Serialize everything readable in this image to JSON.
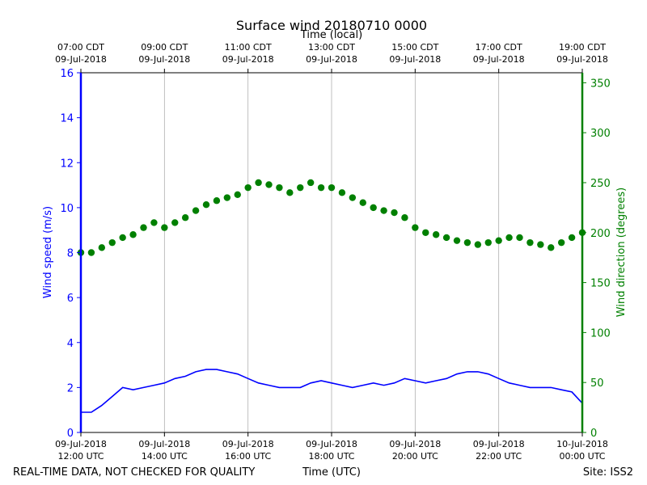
{
  "chart_data": {
    "type": "scatter",
    "title": "Surface wind 20180710 0000",
    "top_axis_label": "Time (local)",
    "xlabel": "Time (UTC)",
    "ylabel_left": "Wind speed (m/s)",
    "ylabel_right": "Wind direction (degrees)",
    "left_ylim": [
      0,
      16
    ],
    "right_ylim": [
      0,
      360
    ],
    "left_ticks": [
      "0",
      "2",
      "4",
      "6",
      "8",
      "10",
      "12",
      "14",
      "16"
    ],
    "right_ticks": [
      "0",
      "50",
      "100",
      "150",
      "200",
      "250",
      "300",
      "350"
    ],
    "x_range_hours_utc": [
      12,
      24
    ],
    "bottom_ticks": [
      {
        "hour": 12,
        "line1": "09-Jul-2018",
        "line2": "12:00 UTC"
      },
      {
        "hour": 14,
        "line1": "09-Jul-2018",
        "line2": "14:00 UTC"
      },
      {
        "hour": 16,
        "line1": "09-Jul-2018",
        "line2": "16:00 UTC"
      },
      {
        "hour": 18,
        "line1": "09-Jul-2018",
        "line2": "18:00 UTC"
      },
      {
        "hour": 20,
        "line1": "09-Jul-2018",
        "line2": "20:00 UTC"
      },
      {
        "hour": 22,
        "line1": "09-Jul-2018",
        "line2": "22:00 UTC"
      },
      {
        "hour": 24,
        "line1": "10-Jul-2018",
        "line2": "00:00 UTC"
      }
    ],
    "top_ticks": [
      {
        "hour": 12,
        "line1": "07:00 CDT",
        "line2": "09-Jul-2018"
      },
      {
        "hour": 14,
        "line1": "09:00 CDT",
        "line2": "09-Jul-2018"
      },
      {
        "hour": 16,
        "line1": "11:00 CDT",
        "line2": "09-Jul-2018"
      },
      {
        "hour": 18,
        "line1": "13:00 CDT",
        "line2": "09-Jul-2018"
      },
      {
        "hour": 20,
        "line1": "15:00 CDT",
        "line2": "09-Jul-2018"
      },
      {
        "hour": 22,
        "line1": "17:00 CDT",
        "line2": "09-Jul-2018"
      },
      {
        "hour": 24,
        "line1": "19:00 CDT",
        "line2": "09-Jul-2018"
      }
    ],
    "series": [
      {
        "name": "Wind speed",
        "axis": "left",
        "style": "line",
        "color": "#0000ff",
        "x": [
          12.0,
          12.25,
          12.5,
          12.75,
          13.0,
          13.25,
          13.5,
          13.75,
          14.0,
          14.25,
          14.5,
          14.75,
          15.0,
          15.25,
          15.5,
          15.75,
          16.0,
          16.25,
          16.5,
          16.75,
          17.0,
          17.25,
          17.5,
          17.75,
          18.0,
          18.25,
          18.5,
          18.75,
          19.0,
          19.25,
          19.5,
          19.75,
          20.0,
          20.25,
          20.5,
          20.75,
          21.0,
          21.25,
          21.5,
          21.75,
          22.0,
          22.25,
          22.5,
          22.75,
          23.0,
          23.25,
          23.5,
          23.75,
          24.0
        ],
        "values": [
          0.9,
          0.9,
          1.2,
          1.6,
          2.0,
          1.9,
          2.0,
          2.1,
          2.2,
          2.4,
          2.5,
          2.7,
          2.8,
          2.8,
          2.7,
          2.6,
          2.4,
          2.2,
          2.1,
          2.0,
          2.0,
          2.0,
          2.2,
          2.3,
          2.2,
          2.1,
          2.0,
          2.1,
          2.2,
          2.1,
          2.2,
          2.4,
          2.3,
          2.2,
          2.3,
          2.4,
          2.6,
          2.7,
          2.7,
          2.6,
          2.4,
          2.2,
          2.1,
          2.0,
          2.0,
          2.0,
          1.9,
          1.8,
          1.3
        ]
      },
      {
        "name": "Wind direction",
        "axis": "right",
        "style": "markers",
        "color": "#008000",
        "x": [
          12.0,
          12.25,
          12.5,
          12.75,
          13.0,
          13.25,
          13.5,
          13.75,
          14.0,
          14.25,
          14.5,
          14.75,
          15.0,
          15.25,
          15.5,
          15.75,
          16.0,
          16.25,
          16.5,
          16.75,
          17.0,
          17.25,
          17.5,
          17.75,
          18.0,
          18.25,
          18.5,
          18.75,
          19.0,
          19.25,
          19.5,
          19.75,
          20.0,
          20.25,
          20.5,
          20.75,
          21.0,
          21.25,
          21.5,
          21.75,
          22.0,
          22.25,
          22.5,
          22.75,
          23.0,
          23.25,
          23.5,
          23.75,
          24.0
        ],
        "values": [
          180,
          180,
          185,
          190,
          195,
          198,
          205,
          210,
          205,
          210,
          215,
          222,
          228,
          232,
          235,
          238,
          245,
          250,
          248,
          245,
          240,
          245,
          250,
          245,
          245,
          240,
          235,
          230,
          225,
          222,
          220,
          215,
          205,
          200,
          198,
          195,
          192,
          190,
          188,
          190,
          192,
          195,
          195,
          190,
          188,
          185,
          190,
          195,
          200
        ]
      }
    ]
  },
  "footer": {
    "left_note": "REAL-TIME DATA, NOT CHECKED FOR QUALITY",
    "site": "Site: ISS2"
  }
}
